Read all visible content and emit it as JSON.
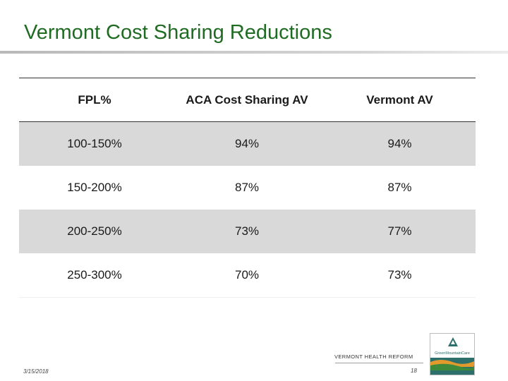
{
  "slide": {
    "title": "Vermont Cost Sharing Reductions"
  },
  "table": {
    "headers": [
      "FPL%",
      "ACA Cost Sharing AV",
      "Vermont AV"
    ],
    "rows": [
      [
        "100-150%",
        "94%",
        "94%"
      ],
      [
        "150-200%",
        "87%",
        "87%"
      ],
      [
        "200-250%",
        "73%",
        "77%"
      ],
      [
        "250-300%",
        "70%",
        "73%"
      ]
    ]
  },
  "footer": {
    "org": "VERMONT HEALTH REFORM",
    "date": "3/15/2018",
    "page": "18"
  },
  "logo": {
    "text": "GreenMountainCare",
    "icon": "mountain-logo-icon"
  },
  "colors": {
    "title": "#1f6b22",
    "row_shade": "#d9d9d9",
    "logo_teal": "#2d6f6a",
    "logo_orange": "#e39a2d",
    "logo_green": "#3c8a3a"
  }
}
